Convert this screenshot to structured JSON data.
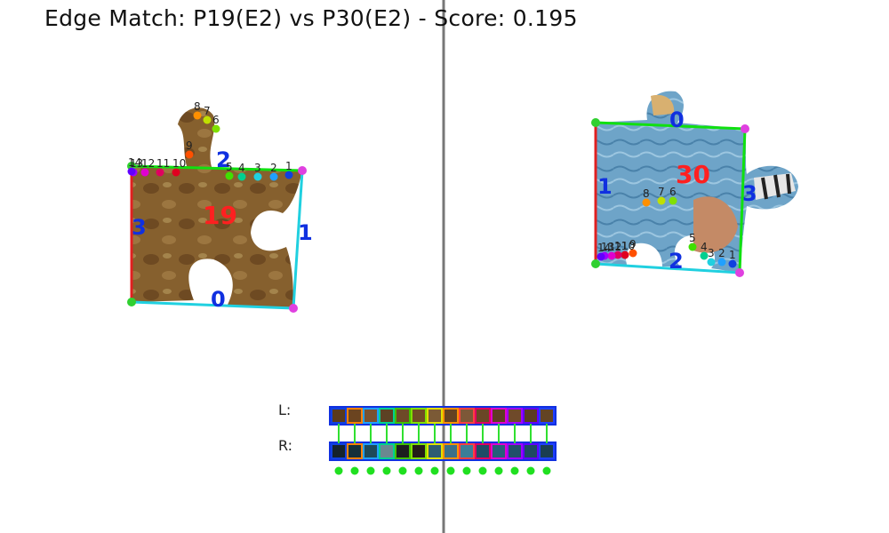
{
  "title": "Edge Match: P19(E2) vs P30(E2) - Score: 0.195",
  "left_piece": {
    "id": "19",
    "edge_labels": [
      "0",
      "1",
      "2",
      "3"
    ],
    "point_labels": [
      "1",
      "2",
      "3",
      "4",
      "5",
      "6",
      "7",
      "8",
      "9",
      "10",
      "11",
      "12",
      "13",
      "14"
    ]
  },
  "right_piece": {
    "id": "30",
    "edge_labels": [
      "0",
      "1",
      "2",
      "3"
    ],
    "point_labels": [
      "1",
      "2",
      "3",
      "4",
      "5",
      "6",
      "7",
      "8",
      "9",
      "10",
      "11",
      "12",
      "13",
      "14"
    ]
  },
  "strip_labels": {
    "left": "L:",
    "right": "R:"
  },
  "strips": {
    "left_colors": [
      "#5a3a1c",
      "#6b4420",
      "#7a5230",
      "#5c4224",
      "#6e4a28",
      "#704c26",
      "#7b5a36",
      "#654222",
      "#7d5838",
      "#6a4726",
      "#5e3e22",
      "#6f4a2a",
      "#5b3c20",
      "#634424"
    ],
    "right_colors": [
      "#15222c",
      "#16303a",
      "#1e4a5a",
      "#6a8890",
      "#1c1e1e",
      "#241c18",
      "#2e5c72",
      "#3b7088",
      "#3c7e98",
      "#1e4c66",
      "#27607a",
      "#21506a",
      "#1d4a62",
      "#1a3e52"
    ],
    "border_colors": [
      "#1040e0",
      "#ff8000",
      "#20a0ff",
      "#00d090",
      "#40c000",
      "#80e000",
      "#e0e000",
      "#ff9000",
      "#ff4040",
      "#e00060",
      "#e000d0",
      "#a000ff",
      "#6000ff",
      "#2040ff"
    ]
  }
}
